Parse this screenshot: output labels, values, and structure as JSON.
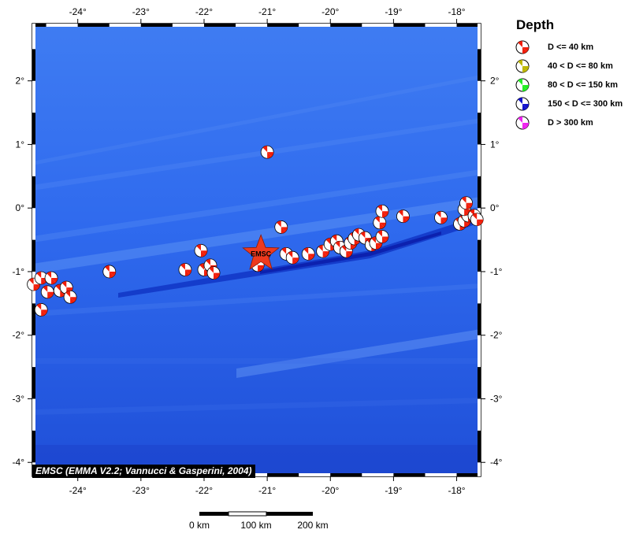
{
  "map": {
    "x_ticks": [
      "-24°",
      "-23°",
      "-22°",
      "-21°",
      "-20°",
      "-19°",
      "-18°"
    ],
    "y_ticks": [
      "2°",
      "1°",
      "0°",
      "-1°",
      "-2°",
      "-3°",
      "-4°"
    ],
    "x_tick_values": [
      -24,
      -23,
      -22,
      -21,
      -20,
      -19,
      -18
    ],
    "y_tick_values": [
      2,
      1,
      0,
      -1,
      -2,
      -3,
      -4
    ],
    "lon_range": [
      -24.72,
      -17.62
    ],
    "lat_range": [
      -4.22,
      2.9
    ],
    "ocean_color": "#2a63ec",
    "trench_color": "#0a22b4",
    "star_label": "EMSC",
    "star_color": "#ee3a1e",
    "epicenter": {
      "lon": -21.1,
      "lat": -0.72
    },
    "events_depth_class": "D <= 40 km",
    "events": [
      {
        "lon": -21.0,
        "lat": 0.88
      },
      {
        "lon": -20.78,
        "lat": -0.3
      },
      {
        "lon": -22.05,
        "lat": -0.67
      },
      {
        "lon": -22.3,
        "lat": -0.97
      },
      {
        "lon": -22.0,
        "lat": -0.97
      },
      {
        "lon": -21.9,
        "lat": -0.9
      },
      {
        "lon": -21.85,
        "lat": -1.02
      },
      {
        "lon": -21.15,
        "lat": -0.9
      },
      {
        "lon": -21.05,
        "lat": -0.72
      },
      {
        "lon": -20.7,
        "lat": -0.72
      },
      {
        "lon": -20.6,
        "lat": -0.78
      },
      {
        "lon": -20.35,
        "lat": -0.72
      },
      {
        "lon": -20.12,
        "lat": -0.68
      },
      {
        "lon": -20.0,
        "lat": -0.57
      },
      {
        "lon": -19.9,
        "lat": -0.52
      },
      {
        "lon": -19.85,
        "lat": -0.62
      },
      {
        "lon": -19.75,
        "lat": -0.68
      },
      {
        "lon": -19.68,
        "lat": -0.55
      },
      {
        "lon": -19.62,
        "lat": -0.48
      },
      {
        "lon": -19.55,
        "lat": -0.42
      },
      {
        "lon": -19.45,
        "lat": -0.47
      },
      {
        "lon": -19.35,
        "lat": -0.58
      },
      {
        "lon": -19.28,
        "lat": -0.55
      },
      {
        "lon": -19.18,
        "lat": -0.45
      },
      {
        "lon": -19.22,
        "lat": -0.23
      },
      {
        "lon": -19.18,
        "lat": -0.05
      },
      {
        "lon": -18.85,
        "lat": -0.13
      },
      {
        "lon": -18.25,
        "lat": -0.15
      },
      {
        "lon": -17.95,
        "lat": -0.25
      },
      {
        "lon": -17.88,
        "lat": -0.2
      },
      {
        "lon": -17.82,
        "lat": -0.12
      },
      {
        "lon": -17.88,
        "lat": -0.02
      },
      {
        "lon": -17.85,
        "lat": 0.08
      },
      {
        "lon": -17.72,
        "lat": -0.12
      },
      {
        "lon": -17.68,
        "lat": -0.18
      },
      {
        "lon": -23.5,
        "lat": -1.0
      },
      {
        "lon": -24.7,
        "lat": -1.2
      },
      {
        "lon": -24.58,
        "lat": -1.1
      },
      {
        "lon": -24.42,
        "lat": -1.1
      },
      {
        "lon": -24.48,
        "lat": -1.32
      },
      {
        "lon": -24.28,
        "lat": -1.3
      },
      {
        "lon": -24.18,
        "lat": -1.25
      },
      {
        "lon": -24.12,
        "lat": -1.4
      },
      {
        "lon": -24.58,
        "lat": -1.6
      }
    ]
  },
  "legend": {
    "title": "Depth",
    "items": [
      {
        "label": "D <= 40 km",
        "color": "#f01e0a"
      },
      {
        "label": "40 < D <= 80 km",
        "color": "#bdb600"
      },
      {
        "label": "80 < D <= 150 km",
        "color": "#22ee22"
      },
      {
        "label": "150 < D <= 300 km",
        "color": "#1212cc"
      },
      {
        "label": "D > 300 km",
        "color": "#ee22ee"
      }
    ]
  },
  "scalebar": {
    "labels": [
      "0 km",
      "100 km",
      "200 km"
    ],
    "values_km": [
      0,
      100,
      200
    ]
  },
  "credit": "EMSC (EMMA V2.2; Vannucci & Gasperini, 2004)"
}
